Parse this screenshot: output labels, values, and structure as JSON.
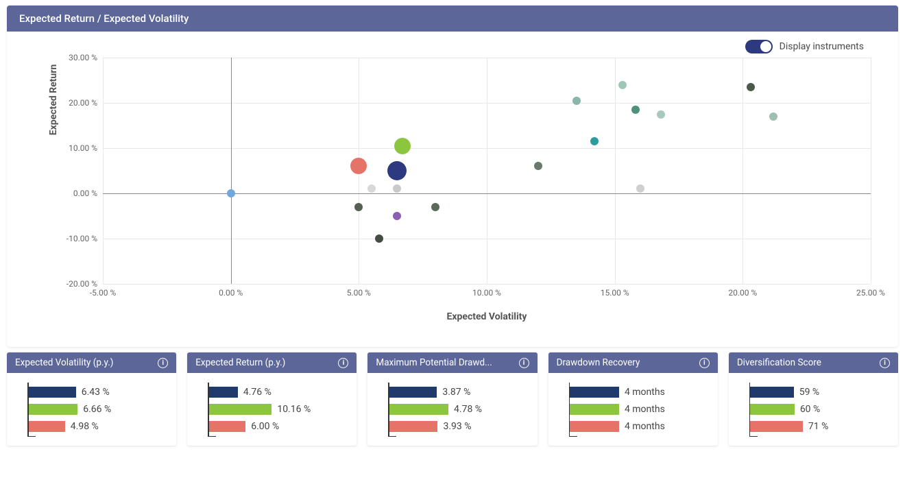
{
  "colors": {
    "header_bg": "#5c6699",
    "navy": "#1f3a6b",
    "green": "#8cc63f",
    "coral": "#e57368"
  },
  "main_chart": {
    "title": "Expected Return / Expected Volatility",
    "toggle_label": "Display instruments",
    "type": "scatter",
    "xlabel": "Expected Volatility",
    "ylabel": "Expected Return",
    "xlim": [
      -5,
      25
    ],
    "ylim": [
      -20,
      30
    ],
    "xtick_step": 5,
    "ytick_step": 10,
    "tick_suffix": " %",
    "background_color": "#ffffff",
    "grid_color": "#e8e8e8",
    "axis_color": "#888888",
    "label_fontsize": 14,
    "tick_fontsize": 12,
    "points": [
      {
        "x": 0.0,
        "y": 0.0,
        "r": 6,
        "color": "#6fa8dc"
      },
      {
        "x": 5.0,
        "y": 6.0,
        "r": 12,
        "color": "#e57368"
      },
      {
        "x": 6.5,
        "y": 5.0,
        "r": 14,
        "color": "#2d3a80"
      },
      {
        "x": 6.7,
        "y": 10.5,
        "r": 12,
        "color": "#8cc63f"
      },
      {
        "x": 5.5,
        "y": 1.0,
        "r": 6,
        "color": "#d8d8d8"
      },
      {
        "x": 6.5,
        "y": 1.0,
        "r": 6,
        "color": "#c9c9c9"
      },
      {
        "x": 5.0,
        "y": -3.0,
        "r": 6,
        "color": "#556055"
      },
      {
        "x": 6.5,
        "y": -5.0,
        "r": 6,
        "color": "#8c5fb5"
      },
      {
        "x": 5.8,
        "y": -10.0,
        "r": 6,
        "color": "#444c44"
      },
      {
        "x": 8.0,
        "y": -3.0,
        "r": 6,
        "color": "#5b6b5b"
      },
      {
        "x": 12.0,
        "y": 6.0,
        "r": 6,
        "color": "#6a7a6a"
      },
      {
        "x": 13.5,
        "y": 20.5,
        "r": 6,
        "color": "#88b6a8"
      },
      {
        "x": 14.2,
        "y": 11.5,
        "r": 6,
        "color": "#2f9c9c"
      },
      {
        "x": 15.3,
        "y": 24.0,
        "r": 6,
        "color": "#9fc7b8"
      },
      {
        "x": 15.8,
        "y": 18.5,
        "r": 6,
        "color": "#4f8f7d"
      },
      {
        "x": 16.0,
        "y": 1.0,
        "r": 6,
        "color": "#cfcfcf"
      },
      {
        "x": 16.8,
        "y": 17.5,
        "r": 6,
        "color": "#a8c9bd"
      },
      {
        "x": 20.3,
        "y": 23.5,
        "r": 6,
        "color": "#4a5a4a"
      },
      {
        "x": 21.2,
        "y": 17.0,
        "r": 6,
        "color": "#9fbfb0"
      }
    ]
  },
  "metrics": [
    {
      "title": "Expected Volatility (p.y.)",
      "max": 10,
      "bars": [
        {
          "value": 6.43,
          "label": "6.43 %",
          "color": "#1f3a6b"
        },
        {
          "value": 6.66,
          "label": "6.66 %",
          "color": "#8cc63f"
        },
        {
          "value": 4.98,
          "label": "4.98 %",
          "color": "#e57368"
        }
      ]
    },
    {
      "title": "Expected Return (p.y.)",
      "max": 12,
      "bars": [
        {
          "value": 4.76,
          "label": "4.76 %",
          "color": "#1f3a6b"
        },
        {
          "value": 10.16,
          "label": "10.16 %",
          "color": "#8cc63f"
        },
        {
          "value": 6.0,
          "label": "6.00 %",
          "color": "#e57368"
        }
      ]
    },
    {
      "title": "Maximum Potential Drawd...",
      "max": 6,
      "bars": [
        {
          "value": 3.87,
          "label": "3.87 %",
          "color": "#1f3a6b"
        },
        {
          "value": 4.78,
          "label": "4.78 %",
          "color": "#8cc63f"
        },
        {
          "value": 3.93,
          "label": "3.93 %",
          "color": "#e57368"
        }
      ]
    },
    {
      "title": "Drawdown Recovery",
      "max": 6,
      "bars": [
        {
          "value": 4,
          "label": "4 months",
          "color": "#1f3a6b"
        },
        {
          "value": 4,
          "label": "4 months",
          "color": "#8cc63f"
        },
        {
          "value": 4,
          "label": "4 months",
          "color": "#e57368"
        }
      ]
    },
    {
      "title": "Diversification Score",
      "max": 100,
      "bars": [
        {
          "value": 59,
          "label": "59 %",
          "color": "#1f3a6b"
        },
        {
          "value": 60,
          "label": "60 %",
          "color": "#8cc63f"
        },
        {
          "value": 71,
          "label": "71 %",
          "color": "#e57368"
        }
      ]
    }
  ]
}
